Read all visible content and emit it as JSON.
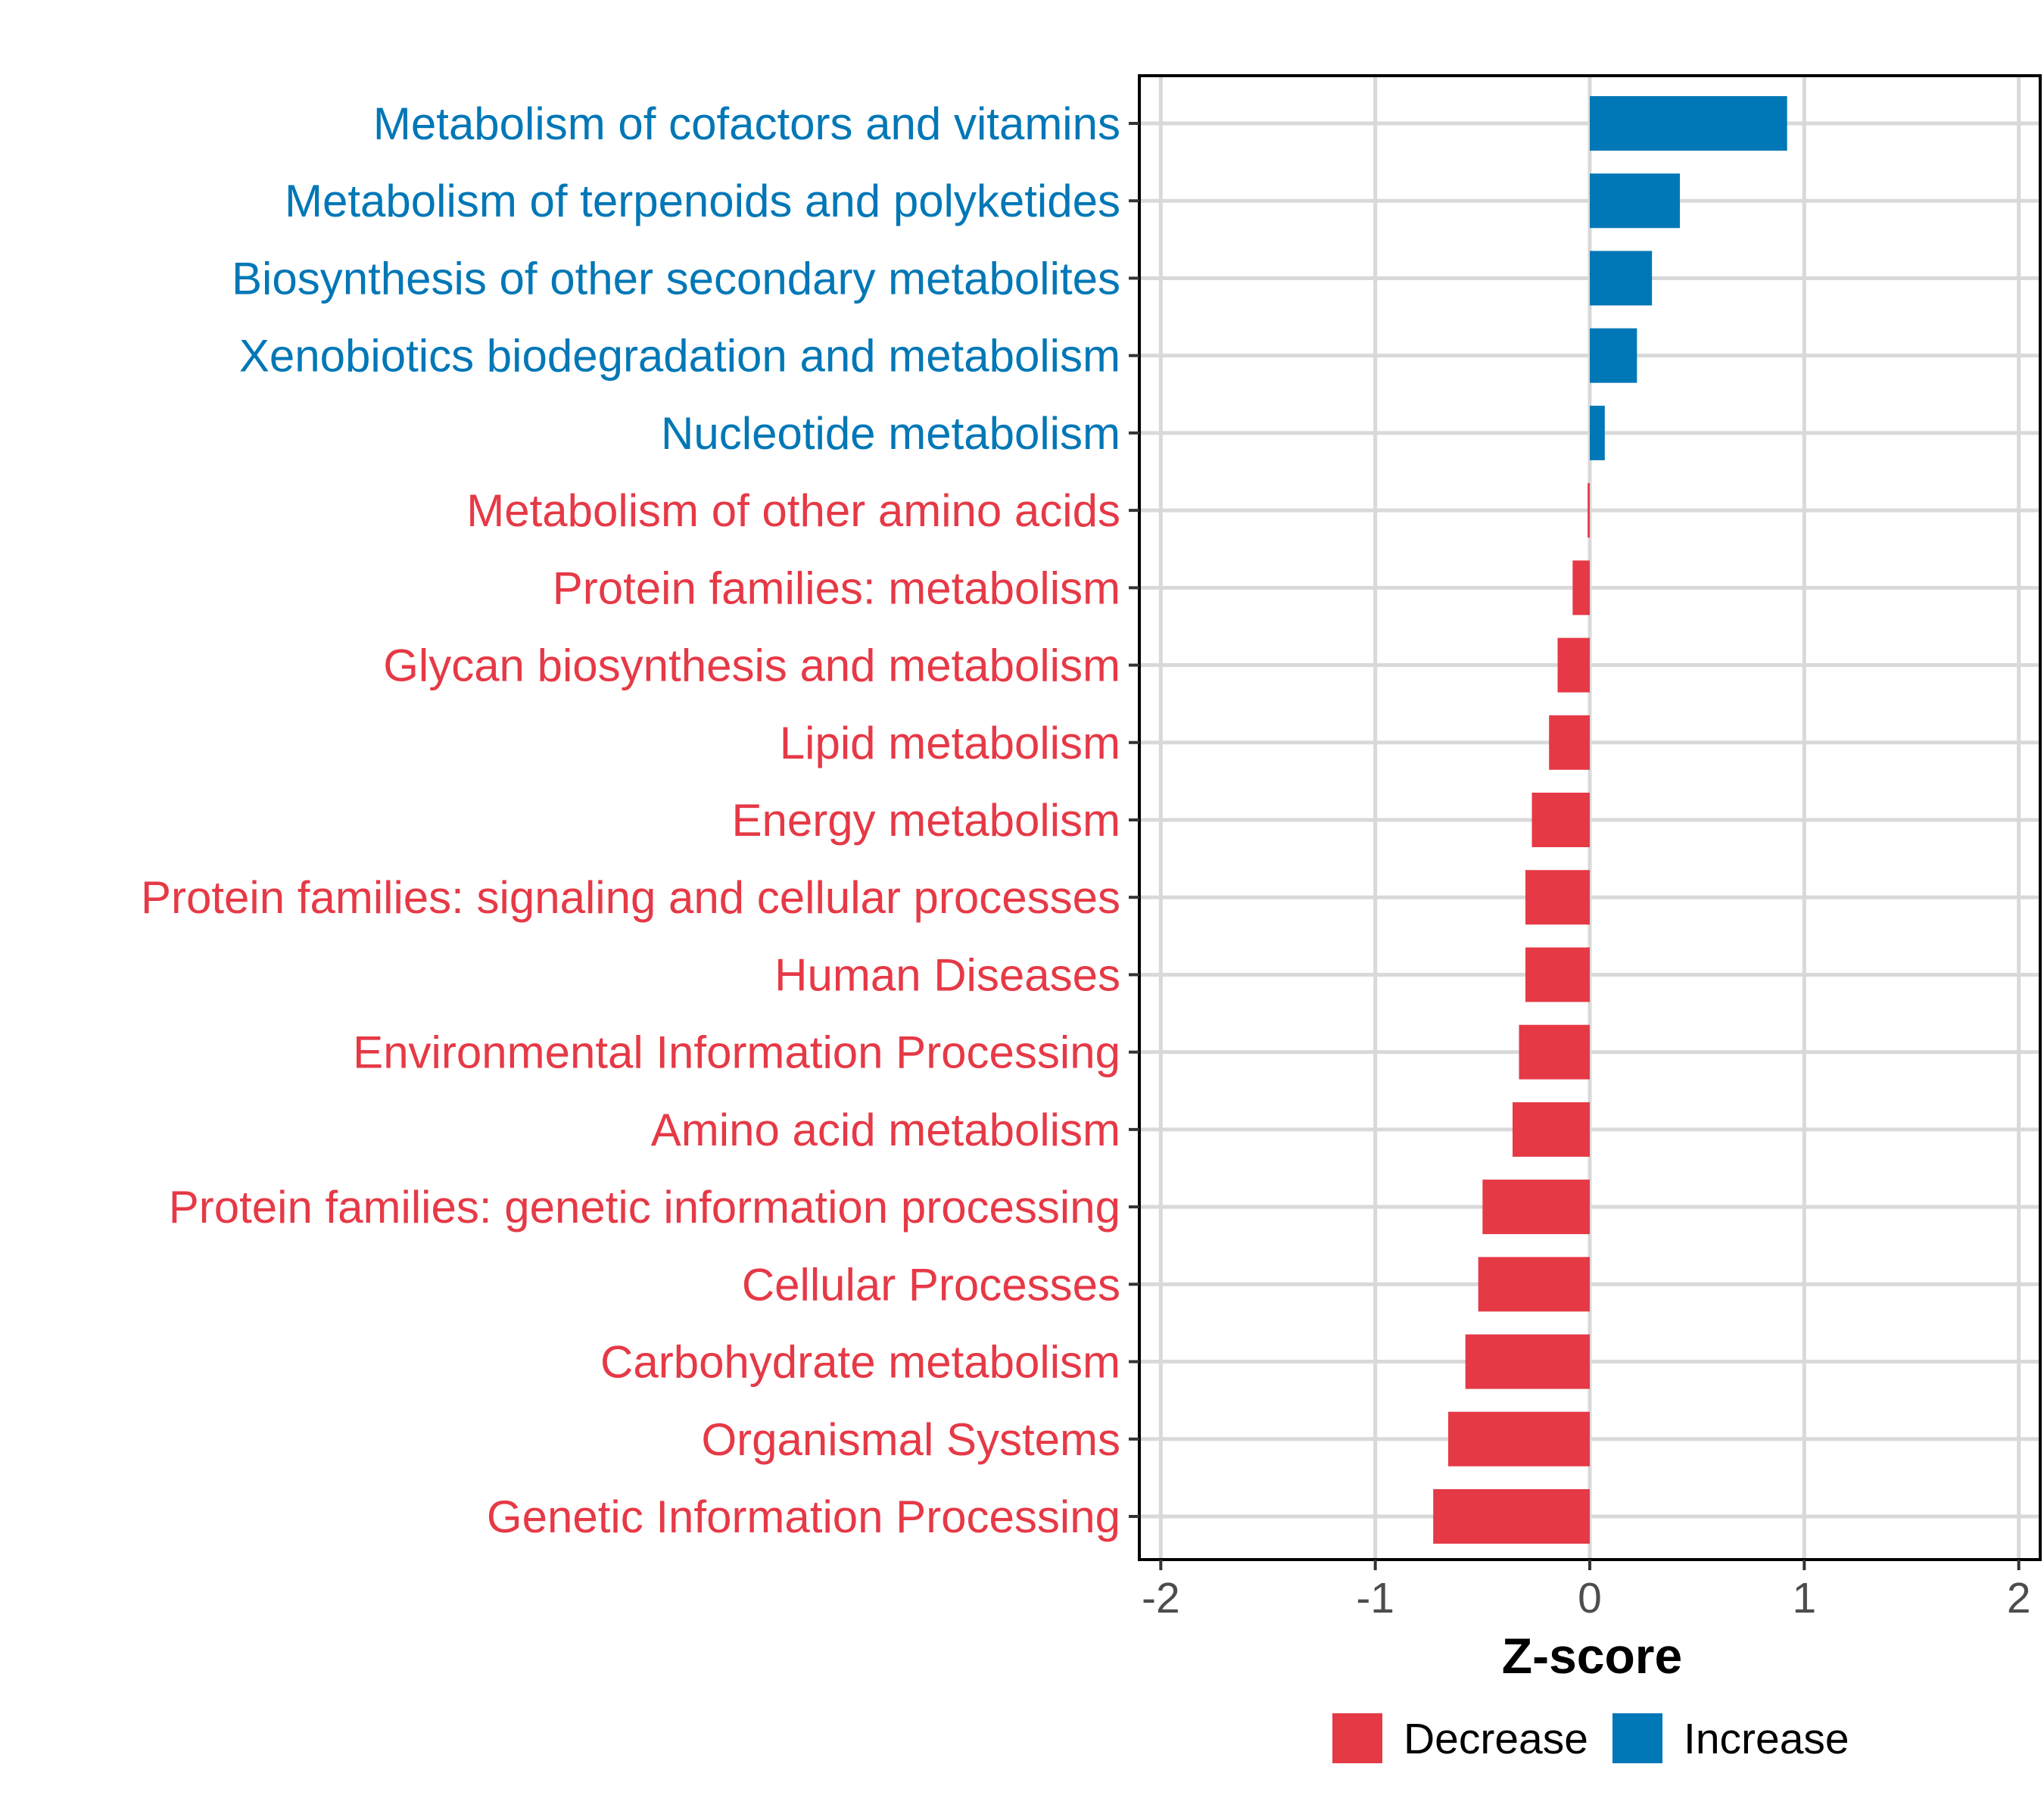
{
  "colors": {
    "decrease": "#e63946",
    "increase": "#0077b6",
    "panel_border": "#000000",
    "grid": "#d9d9d9"
  },
  "chart_data": {
    "type": "bar",
    "orientation": "horizontal",
    "title": "",
    "xlabel": "Z-score",
    "ylabel": "",
    "xlim": [
      -2.1,
      2.1
    ],
    "xticks": [
      -2,
      -1,
      0,
      1,
      2
    ],
    "xtick_labels": [
      "-2",
      "-1",
      "0",
      "1",
      "2"
    ],
    "grid": true,
    "categories": [
      "Metabolism of cofactors and vitamins",
      "Metabolism of terpenoids and polyketides",
      "Biosynthesis of other secondary metabolites",
      "Xenobiotics biodegradation and metabolism",
      "Nucleotide metabolism",
      "Metabolism of other amino acids",
      "Protein families: metabolism",
      "Glycan biosynthesis and metabolism",
      "Lipid metabolism",
      "Energy metabolism",
      "Protein families: signaling and cellular processes",
      "Human Diseases",
      "Environmental Information Processing",
      "Amino acid metabolism",
      "Protein families: genetic information processing",
      "Cellular Processes",
      "Carbohydrate metabolism",
      "Organismal Systems",
      "Genetic Information Processing"
    ],
    "values": [
      0.92,
      0.42,
      0.29,
      0.22,
      0.07,
      -0.01,
      -0.08,
      -0.15,
      -0.19,
      -0.27,
      -0.3,
      -0.3,
      -0.33,
      -0.36,
      -0.5,
      -0.52,
      -0.58,
      -0.66,
      -0.73
    ],
    "groups": [
      "Increase",
      "Increase",
      "Increase",
      "Increase",
      "Increase",
      "Decrease",
      "Decrease",
      "Decrease",
      "Decrease",
      "Decrease",
      "Decrease",
      "Decrease",
      "Decrease",
      "Decrease",
      "Decrease",
      "Decrease",
      "Decrease",
      "Decrease",
      "Decrease"
    ],
    "legend": {
      "position": "bottom",
      "entries": [
        {
          "label": "Decrease",
          "color": "#e63946"
        },
        {
          "label": "Increase",
          "color": "#0077b6"
        }
      ]
    }
  }
}
